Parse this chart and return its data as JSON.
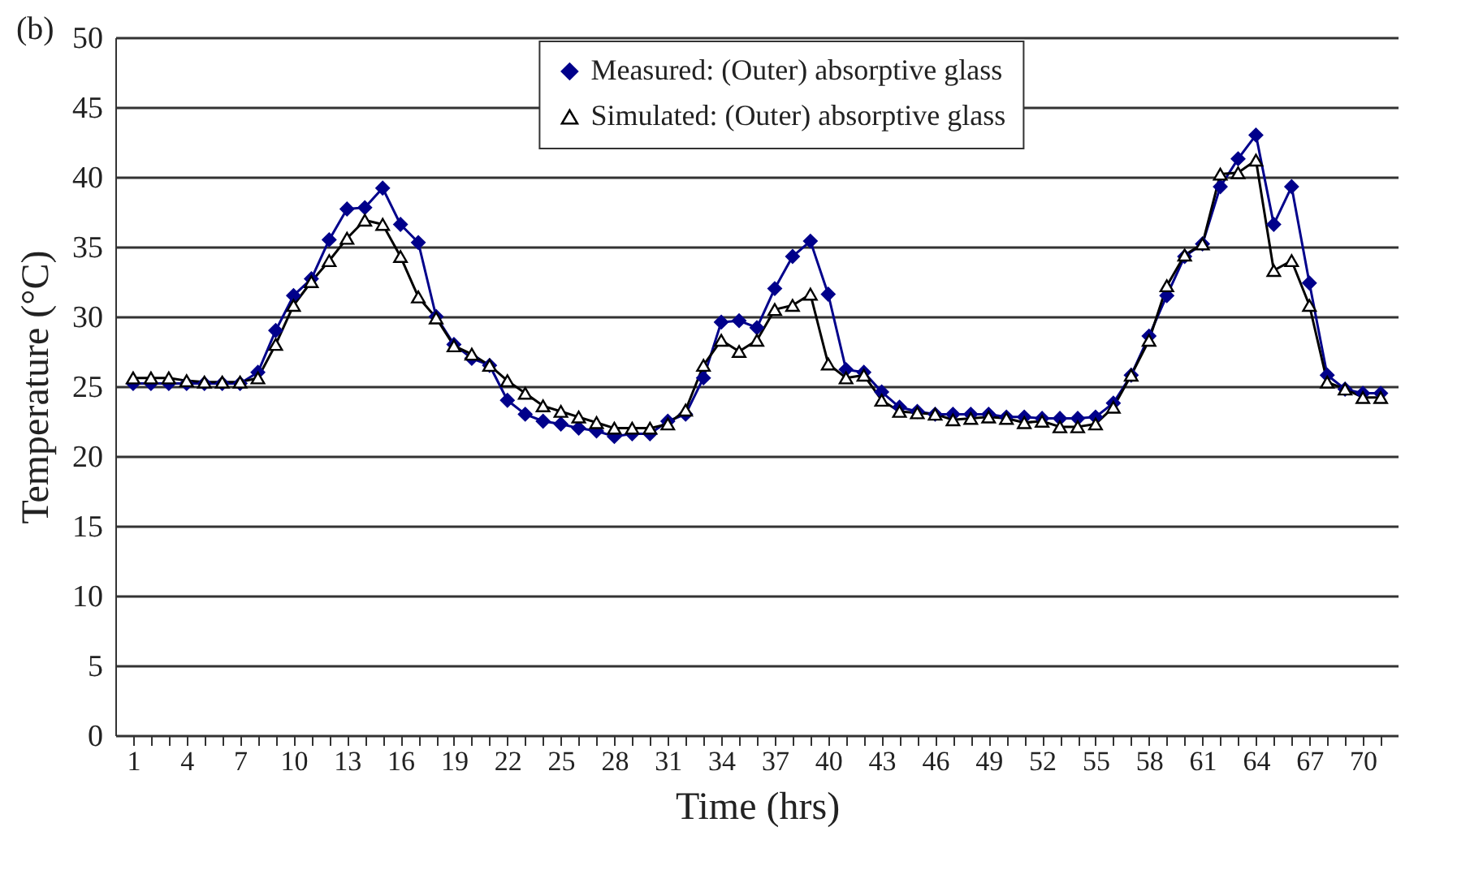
{
  "chart_data": {
    "type": "line",
    "annotations": [
      "(b)"
    ],
    "xlabel": "Time (hrs)",
    "ylabel": "Temperature (°C)",
    "categories": [
      "1",
      null,
      null,
      "4",
      null,
      null,
      "7",
      null,
      null,
      "10",
      null,
      null,
      "13",
      null,
      null,
      "16",
      null,
      null,
      "19",
      null,
      null,
      "22",
      null,
      null,
      "25",
      null,
      null,
      "28",
      null,
      null,
      "31",
      null,
      null,
      "34",
      null,
      null,
      "37",
      null,
      null,
      "40",
      null,
      null,
      "43",
      null,
      null,
      "46",
      null,
      null,
      "49",
      null,
      null,
      "52",
      null,
      null,
      "55",
      null,
      null,
      "58",
      null,
      null,
      "61",
      null,
      null,
      "64",
      null,
      null,
      "67",
      null,
      null,
      "70",
      null
    ],
    "ylim": [
      0,
      50
    ],
    "yticks": [
      0,
      5,
      10,
      15,
      20,
      25,
      30,
      35,
      40,
      45,
      50
    ],
    "grid": "y",
    "legend": "top",
    "series": [
      {
        "name": "Measured: (Outer) absorptive glass",
        "color": "#00008b",
        "marker": "diamond",
        "values": [
          25.2,
          25.2,
          25.2,
          25.2,
          25.2,
          25.2,
          25.2,
          26,
          29,
          31.5,
          32.7,
          35.5,
          37.7,
          37.8,
          39.2,
          36.6,
          35.3,
          30,
          28,
          27,
          26.5,
          24,
          23,
          22.5,
          22.3,
          22,
          21.8,
          21.4,
          21.6,
          21.6,
          22.5,
          23,
          25.6,
          29.6,
          29.7,
          29.2,
          32,
          34.3,
          35.4,
          31.6,
          26.2,
          26,
          24.6,
          23.5,
          23.2,
          23,
          23,
          23,
          23,
          22.8,
          22.8,
          22.7,
          22.7,
          22.7,
          22.8,
          23.8,
          25.8,
          28.6,
          31.5,
          34.3,
          35.2,
          39.3,
          41.3,
          43,
          36.6,
          39.3,
          32.4,
          25.8,
          24.8,
          24.5,
          24.5
        ]
      },
      {
        "name": "Simulated: (Outer) absorptive glass",
        "color": "#000000",
        "marker": "triangle",
        "values": [
          25.6,
          25.6,
          25.6,
          25.4,
          25.3,
          25.3,
          25.3,
          25.6,
          28,
          30.8,
          32.5,
          34,
          35.6,
          36.9,
          36.6,
          34.3,
          31.4,
          29.9,
          27.9,
          27.3,
          26.5,
          25.4,
          24.5,
          23.6,
          23.2,
          22.8,
          22.4,
          22,
          22,
          22,
          22.3,
          23.3,
          26.5,
          28.3,
          27.5,
          28.3,
          30.5,
          30.8,
          31.6,
          26.6,
          25.6,
          25.8,
          24,
          23.2,
          23.1,
          23,
          22.6,
          22.7,
          22.8,
          22.7,
          22.4,
          22.5,
          22.1,
          22.1,
          22.3,
          23.5,
          25.8,
          28.3,
          32.2,
          34.4,
          35.2,
          40.2,
          40.3,
          41.2,
          33.3,
          34,
          30.8,
          25.3,
          24.8,
          24.2,
          24.2
        ]
      }
    ]
  }
}
